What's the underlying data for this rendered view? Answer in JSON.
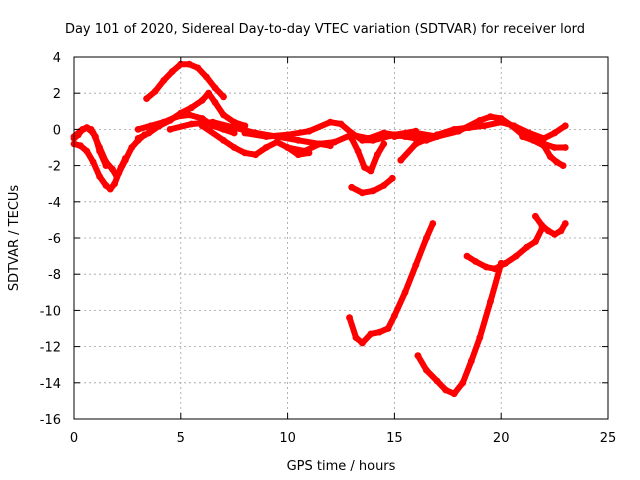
{
  "chart_data": {
    "type": "scatter",
    "title": "Day 101 of 2020, Sidereal Day-to-day VTEC variation (SDTVAR) for receiver lord",
    "xlabel": "GPS time / hours",
    "ylabel": "SDTVAR / TECUs",
    "xlim": [
      0,
      25
    ],
    "ylim": [
      -16,
      4
    ],
    "xticks": [
      0,
      5,
      10,
      15,
      20,
      25
    ],
    "yticks": [
      4,
      2,
      0,
      -2,
      -4,
      -6,
      -8,
      -10,
      -12,
      -14,
      -16
    ],
    "xtick_labels": [
      "0",
      "5",
      "10",
      "15",
      "20",
      "25"
    ],
    "ytick_labels": [
      "4",
      "2",
      "0",
      "-2",
      "-4",
      "-6",
      "-8",
      "-10",
      "-12",
      "-14",
      "-16"
    ],
    "grid": true,
    "legend": "none",
    "color": "#ff0000",
    "series": [
      {
        "name": "track-dip-early",
        "x": [
          0.0,
          0.3,
          0.6,
          0.9,
          1.2,
          1.5,
          1.7,
          1.9,
          2.1,
          2.4,
          2.7,
          3.0,
          3.3
        ],
        "y": [
          -0.8,
          -0.9,
          -1.2,
          -1.8,
          -2.6,
          -3.1,
          -3.3,
          -3.0,
          -2.4,
          -1.7,
          -1.0,
          -0.6,
          -0.3
        ]
      },
      {
        "name": "track-dip-early-b",
        "x": [
          0.0,
          0.3,
          0.6,
          0.9,
          1.2,
          1.5,
          1.8,
          2.0,
          2.2,
          2.4
        ],
        "y": [
          -0.4,
          -0.1,
          0.1,
          -0.2,
          -1.0,
          -1.8,
          -2.2,
          -2.6,
          -2.1,
          -1.6
        ]
      },
      {
        "name": "track-early-bump",
        "x": [
          0.0,
          0.2,
          0.4,
          0.6,
          0.8,
          1.0,
          1.2,
          1.5
        ],
        "y": [
          -0.5,
          -0.3,
          0.0,
          0.1,
          0.0,
          -0.4,
          -1.2,
          -2.0
        ]
      },
      {
        "name": "track-high-arc",
        "x": [
          3.4,
          3.8,
          4.2,
          4.6,
          5.0,
          5.4,
          5.8,
          6.2,
          6.6,
          7.0
        ],
        "y": [
          1.7,
          2.1,
          2.7,
          3.2,
          3.6,
          3.6,
          3.4,
          2.9,
          2.3,
          1.8
        ]
      },
      {
        "name": "track-mid-hump",
        "x": [
          3.0,
          3.5,
          4.0,
          4.5,
          5.0,
          5.5,
          6.0,
          6.3,
          6.6,
          7.0,
          7.5,
          8.0
        ],
        "y": [
          -0.5,
          -0.2,
          0.2,
          0.5,
          0.9,
          1.2,
          1.6,
          2.0,
          1.5,
          0.8,
          0.4,
          0.2
        ]
      },
      {
        "name": "track-mid-hump-b",
        "x": [
          3.0,
          3.6,
          4.2,
          4.8,
          5.4,
          6.0,
          6.5,
          7.0,
          7.5
        ],
        "y": [
          0.0,
          0.2,
          0.4,
          0.7,
          0.8,
          0.6,
          0.2,
          0.0,
          -0.2
        ]
      },
      {
        "name": "track-mid-flat",
        "x": [
          4.5,
          5.5,
          6.5,
          7.5,
          8.5,
          9.5,
          10.5,
          11.5,
          12.0
        ],
        "y": [
          0.0,
          0.3,
          0.4,
          0.1,
          -0.2,
          -0.4,
          -0.6,
          -0.8,
          -0.9
        ]
      },
      {
        "name": "track-mid-low",
        "x": [
          6.0,
          7.0,
          7.5,
          8.0,
          8.5,
          9.0,
          9.5,
          10.0,
          10.5,
          11.0
        ],
        "y": [
          0.2,
          -0.6,
          -1.0,
          -1.3,
          -1.4,
          -1.0,
          -0.7,
          -1.0,
          -1.4,
          -1.3
        ]
      },
      {
        "name": "track-center",
        "x": [
          8.0,
          9.0,
          10.0,
          11.0,
          12.0,
          12.5,
          13.0,
          13.5,
          14.0,
          15.0,
          16.0
        ],
        "y": [
          -0.2,
          -0.4,
          -0.3,
          -0.1,
          0.4,
          0.3,
          -0.2,
          -0.6,
          -0.6,
          -0.3,
          -0.1
        ]
      },
      {
        "name": "track-center-b",
        "x": [
          10.0,
          10.8,
          11.5,
          12.2,
          13.0,
          13.8,
          14.5,
          15.5,
          16.5,
          17.5
        ],
        "y": [
          -1.0,
          -1.2,
          -0.8,
          -0.7,
          -0.3,
          -0.5,
          -0.2,
          -0.4,
          -0.6,
          -0.2
        ]
      },
      {
        "name": "track-v-dip",
        "x": [
          13.0,
          13.3,
          13.6,
          13.9,
          14.2,
          14.5
        ],
        "y": [
          -0.5,
          -1.2,
          -2.1,
          -2.3,
          -1.4,
          -0.8
        ]
      },
      {
        "name": "track-short-low",
        "x": [
          13.0,
          13.5,
          14.0,
          14.5,
          14.9
        ],
        "y": [
          -3.2,
          -3.5,
          -3.4,
          -3.1,
          -2.7
        ]
      },
      {
        "name": "track-late-flat",
        "x": [
          15.0,
          16.0,
          17.0,
          18.0,
          19.0,
          19.5,
          20.0,
          20.5,
          21.0,
          21.5,
          22.0,
          22.5,
          23.0
        ],
        "y": [
          -0.4,
          -0.2,
          -0.4,
          -0.1,
          0.5,
          0.7,
          0.6,
          0.2,
          -0.3,
          -0.4,
          -0.8,
          -1.0,
          -1.0
        ]
      },
      {
        "name": "track-late-b",
        "x": [
          15.3,
          16.0,
          17.0,
          17.8,
          18.5,
          19.2,
          20.0,
          20.6,
          21.3,
          22.0,
          22.5,
          23.0
        ],
        "y": [
          -1.7,
          -0.8,
          -0.3,
          0.0,
          0.1,
          0.2,
          0.4,
          0.2,
          -0.2,
          -0.5,
          -0.2,
          0.2
        ]
      },
      {
        "name": "track-late-end",
        "x": [
          21.0,
          21.5,
          22.0,
          22.3,
          22.6,
          22.9
        ],
        "y": [
          -0.4,
          -0.6,
          -0.9,
          -1.5,
          -1.8,
          -2.0
        ]
      },
      {
        "name": "track-rise-a",
        "x": [
          12.9,
          13.2,
          13.5,
          13.9,
          14.3,
          14.7,
          15.0,
          15.5,
          16.0,
          16.5,
          16.8
        ],
        "y": [
          -10.4,
          -11.5,
          -11.8,
          -11.3,
          -11.2,
          -11.0,
          -10.3,
          -9.0,
          -7.5,
          -6.0,
          -5.2
        ]
      },
      {
        "name": "track-v-deep",
        "x": [
          16.1,
          16.5,
          17.0,
          17.4,
          17.8,
          18.2,
          18.6,
          19.0,
          19.5,
          20.0
        ],
        "y": [
          -12.5,
          -13.3,
          -13.9,
          -14.4,
          -14.6,
          -14.0,
          -12.8,
          -11.5,
          -9.5,
          -7.4
        ]
      },
      {
        "name": "track-late-rise",
        "x": [
          18.4,
          18.8,
          19.3,
          19.7,
          20.2,
          20.7,
          21.2,
          21.6,
          21.9
        ],
        "y": [
          -7.0,
          -7.3,
          -7.6,
          -7.7,
          -7.4,
          -7.0,
          -6.5,
          -6.2,
          -5.5
        ]
      },
      {
        "name": "track-late-rise-b",
        "x": [
          21.6,
          21.9,
          22.2,
          22.5,
          22.8,
          23.0
        ],
        "y": [
          -4.8,
          -5.3,
          -5.6,
          -5.8,
          -5.6,
          -5.2
        ]
      }
    ]
  }
}
